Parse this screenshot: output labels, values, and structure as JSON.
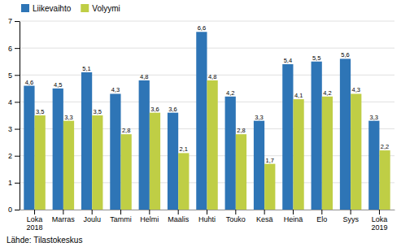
{
  "chart_data": {
    "type": "bar",
    "categories": [
      "Loka\n2018",
      "Marras",
      "Joulu",
      "Tammi",
      "Helmi",
      "Maalis",
      "Huhti",
      "Touko",
      "Kesä",
      "Heinä",
      "Elo",
      "Syys",
      "Loka\n2019"
    ],
    "series": [
      {
        "name": "Liikevaihto",
        "color": "#2E75B6",
        "values": [
          4.6,
          4.5,
          5.1,
          4.3,
          4.8,
          3.6,
          6.6,
          4.2,
          3.3,
          5.4,
          5.5,
          5.6,
          3.3
        ],
        "value_labels": [
          "4,6",
          "4,5",
          "5,1",
          "4,3",
          "4,8",
          "3,6",
          "6,6",
          "4,2",
          "3,3",
          "5,4",
          "5,5",
          "5,6",
          "3,3"
        ]
      },
      {
        "name": "Volyymi",
        "color": "#BFCE45",
        "values": [
          3.5,
          3.3,
          3.5,
          2.8,
          3.6,
          2.1,
          4.8,
          2.8,
          1.7,
          4.1,
          4.2,
          4.3,
          2.2
        ],
        "value_labels": [
          "3,5",
          "3,3",
          "3,5",
          "2,8",
          "3,6",
          "2,1",
          "4,8",
          "2,8",
          "1,7",
          "4,1",
          "4,2",
          "4,3",
          "2,2"
        ]
      }
    ],
    "ylim": [
      0,
      7
    ],
    "yticks": [
      0,
      1,
      2,
      3,
      4,
      5,
      6,
      7
    ],
    "grid": true,
    "legend": "upper left",
    "data_labels": true,
    "annotations": [
      "Lähde: Tilastokeskus"
    ]
  }
}
